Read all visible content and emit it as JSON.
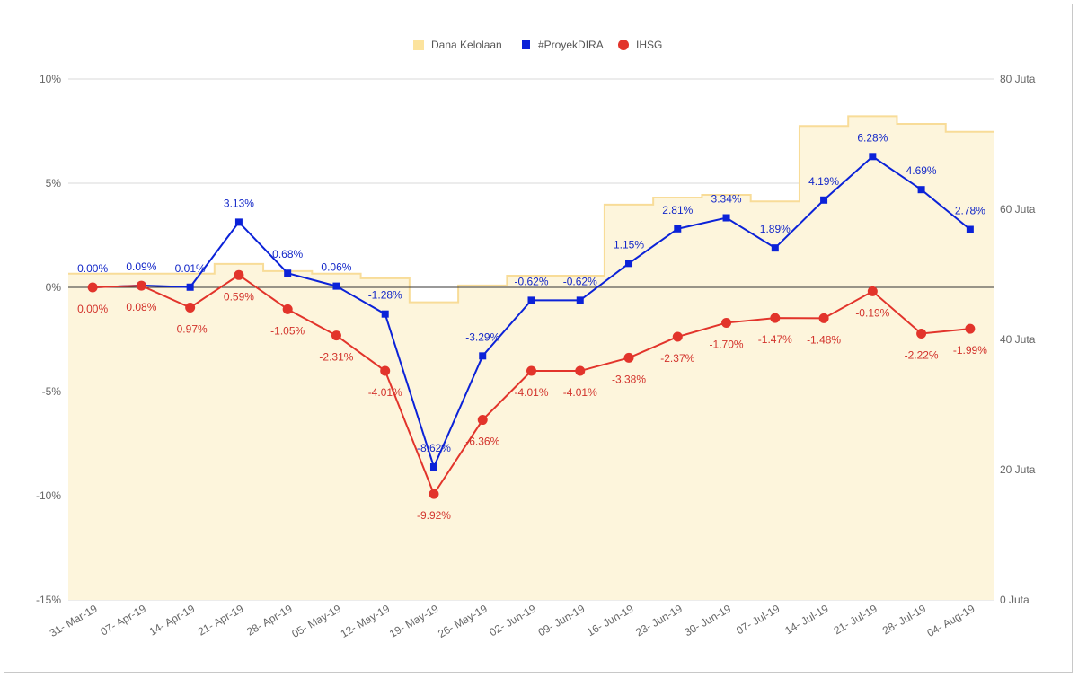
{
  "chart_data": {
    "type": "line",
    "title": "",
    "legend": {
      "position": "top",
      "entries": [
        "Dana Kelolaan",
        "#ProyekDIRA",
        "IHSG"
      ]
    },
    "categories": [
      "31- Mar-19",
      "07- Apr-19",
      "14- Apr-19",
      "21- Apr-19",
      "28- Apr-19",
      "05- May-19",
      "12- May-19",
      "19- May-19",
      "26- May-19",
      "02- Jun-19",
      "09- Jun-19",
      "16- Jun-19",
      "23- Jun-19",
      "30- Jun-19",
      "07- Jul-19",
      "14- Jul-19",
      "21- Jul-19",
      "28- Jul-19",
      "04- Aug-19"
    ],
    "left_axis": {
      "ylim": [
        -15,
        10
      ],
      "ticks": [
        10,
        5,
        0,
        -5,
        -10,
        -15
      ],
      "tick_labels": [
        "10%",
        "5%",
        "0%",
        "-5%",
        "-10%",
        "-15%"
      ]
    },
    "right_axis": {
      "ylim": [
        0,
        80
      ],
      "ticks": [
        80,
        60,
        40,
        20,
        0
      ],
      "tick_labels": [
        "80 Juta",
        "60 Juta",
        "40 Juta",
        "20 Juta",
        "0 Juta"
      ]
    },
    "grid": true,
    "series": [
      {
        "name": "Dana Kelolaan",
        "type": "stepped-area",
        "axis": "right",
        "color": "#f8dc98",
        "fill": "#fdf5dc",
        "legend_color": "#fce39d",
        "values": [
          50.1,
          50.1,
          50.1,
          51.6,
          50.5,
          50.1,
          49.4,
          45.7,
          48.3,
          49.8,
          49.8,
          60.7,
          61.8,
          62.2,
          61.2,
          72.8,
          74.3,
          73.1,
          71.9
        ]
      },
      {
        "name": "#ProyekDIRA",
        "type": "line",
        "axis": "left",
        "marker": "square",
        "color": "#0b22d8",
        "values": [
          0.0,
          0.09,
          0.01,
          3.13,
          0.68,
          0.06,
          -1.28,
          -8.62,
          -3.29,
          -0.62,
          -0.62,
          1.15,
          2.81,
          3.34,
          1.89,
          4.19,
          6.28,
          4.69,
          2.78
        ],
        "labels": [
          "0.00%",
          "0.09%",
          "0.01%",
          "3.13%",
          "0.68%",
          "0.06%",
          "-1.28%",
          "-8.62%",
          "-3.29%",
          "-0.62%",
          "-0.62%",
          "1.15%",
          "2.81%",
          "3.34%",
          "1.89%",
          "4.19%",
          "6.28%",
          "4.69%",
          "2.78%"
        ]
      },
      {
        "name": "IHSG",
        "type": "line",
        "axis": "left",
        "marker": "circle",
        "color": "#e2342b",
        "values": [
          0.0,
          0.08,
          -0.97,
          0.59,
          -1.05,
          -2.31,
          -4.01,
          -9.92,
          -6.36,
          -4.01,
          -4.01,
          -3.38,
          -2.37,
          -1.7,
          -1.47,
          -1.48,
          -0.19,
          -2.22,
          -1.99
        ],
        "labels": [
          "0.00%",
          "0.08%",
          "-0.97%",
          "0.59%",
          "-1.05%",
          "-2.31%",
          "-4.01%",
          "-9.92%",
          "-6.36%",
          "-4.01%",
          "-4.01%",
          "-3.38%",
          "-2.37%",
          "-1.70%",
          "-1.47%",
          "-1.48%",
          "-0.19%",
          "-2.22%",
          "-1.99%"
        ]
      }
    ]
  }
}
